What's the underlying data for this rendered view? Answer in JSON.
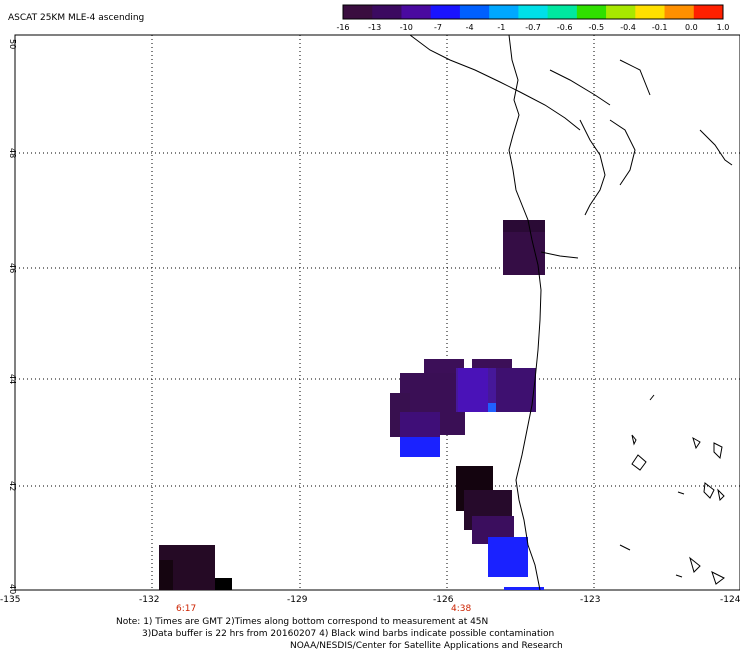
{
  "title": "ASCAT 25KM MLE-4 ascending",
  "colorbar": {
    "colors": [
      "#3a0d3f",
      "#3b0a60",
      "#4a0aa0",
      "#1a14ff",
      "#0060ff",
      "#00a8ff",
      "#00e0e8",
      "#00e8a0",
      "#30e000",
      "#a8e800",
      "#ffe000",
      "#ff9000",
      "#ff2000"
    ],
    "tick_labels": [
      "-16",
      "-13",
      "-10",
      "-7",
      "-4",
      "-1",
      "-0.7",
      "-0.6",
      "-0.5",
      "-0.4",
      "-0.1",
      "0.0",
      "1.0"
    ]
  },
  "map": {
    "lon_range": [
      -135,
      -124
    ],
    "lat_range": [
      40,
      50
    ],
    "x_ticks": [
      "-135",
      "-132",
      "-129",
      "-126",
      "-123",
      "-124"
    ],
    "y_ticks": [
      "50",
      "48",
      "46",
      "44",
      "42",
      "40"
    ],
    "times": [
      "6:17",
      "4:38"
    ]
  },
  "notes": {
    "line1": "Note: 1) Times are GMT 2)Times along bottom correspond to measurement at 45N",
    "line2": "3)Data buffer is 22 hrs from 20160207 4) Black wind barbs indicate possible contamination",
    "line3": "NOAA/NESDIS/Center for Satellite Applications and Research"
  }
}
